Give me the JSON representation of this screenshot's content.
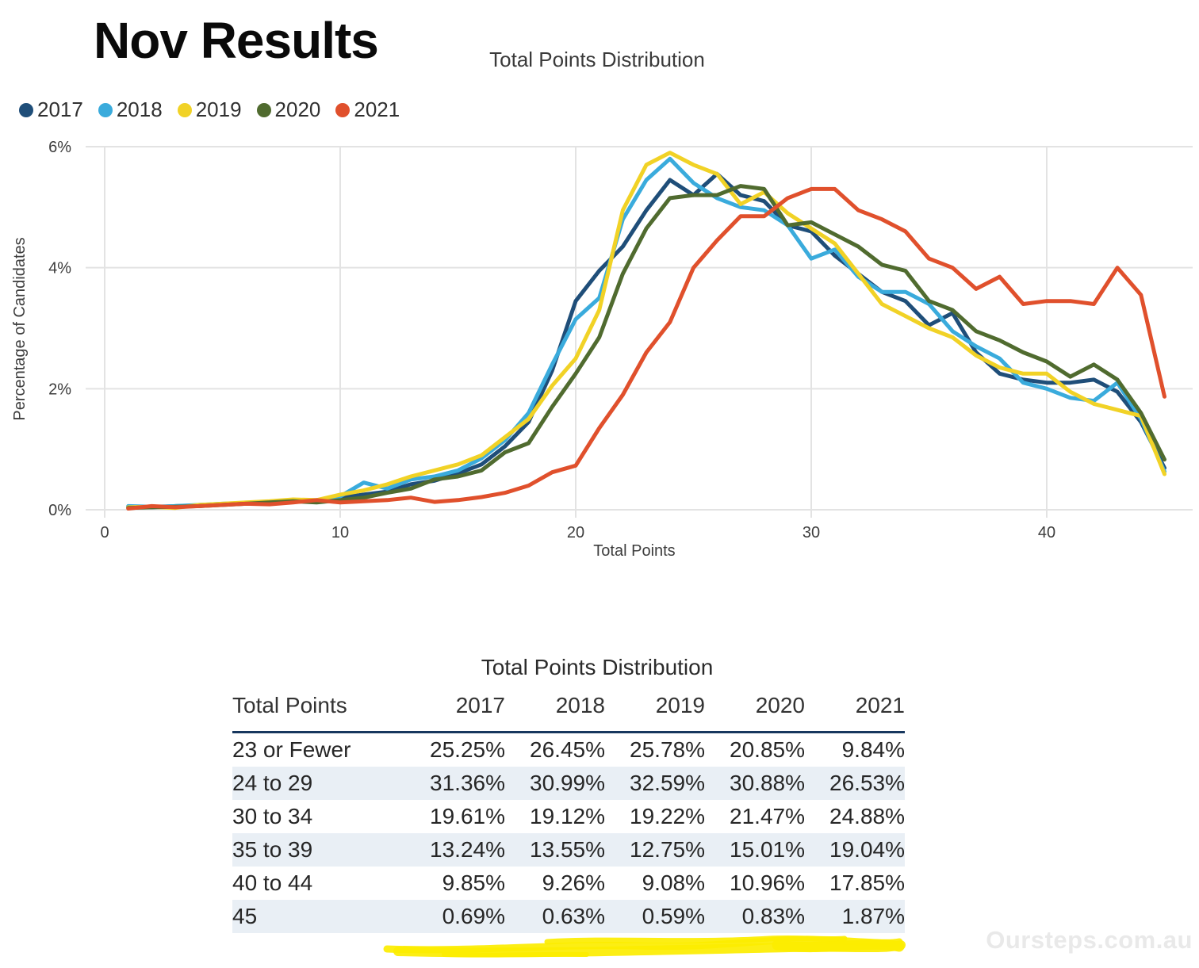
{
  "page_title": "Nov Results",
  "watermark": "Oursteps.com.au",
  "highlight_color": "#fced00",
  "chart_data": {
    "type": "line",
    "title": "Total Points Distribution",
    "xlabel": "Total Points",
    "ylabel": "Percentage of Candidates",
    "xlim": [
      0,
      45.5
    ],
    "ylim": [
      0,
      6
    ],
    "grid": true,
    "legend_position": "top-left",
    "x_ticks": [
      0,
      10,
      20,
      30,
      40
    ],
    "y_ticks": [
      {
        "value": 0,
        "label": "0%"
      },
      {
        "value": 2,
        "label": "2%"
      },
      {
        "value": 4,
        "label": "4%"
      },
      {
        "value": 6,
        "label": "6%"
      }
    ],
    "x": [
      1,
      2,
      3,
      4,
      5,
      6,
      7,
      8,
      9,
      10,
      11,
      12,
      13,
      14,
      15,
      16,
      17,
      18,
      19,
      20,
      21,
      22,
      23,
      24,
      25,
      26,
      27,
      28,
      29,
      30,
      31,
      32,
      33,
      34,
      35,
      36,
      37,
      38,
      39,
      40,
      41,
      42,
      43,
      44,
      45
    ],
    "series": [
      {
        "name": "2017",
        "color": "#1f4e79",
        "values": [
          0.05,
          0.04,
          0.06,
          0.07,
          0.09,
          0.1,
          0.12,
          0.15,
          0.13,
          0.2,
          0.25,
          0.3,
          0.42,
          0.48,
          0.6,
          0.75,
          1.05,
          1.45,
          2.3,
          3.45,
          3.95,
          4.35,
          4.95,
          5.45,
          5.2,
          5.55,
          5.2,
          5.1,
          4.7,
          4.6,
          4.2,
          3.9,
          3.6,
          3.45,
          3.05,
          3.25,
          2.6,
          2.25,
          2.15,
          2.1,
          2.1,
          2.15,
          1.95,
          1.45,
          0.69
        ]
      },
      {
        "name": "2018",
        "color": "#3aabdc",
        "values": [
          0.06,
          0.05,
          0.06,
          0.08,
          0.1,
          0.11,
          0.13,
          0.16,
          0.15,
          0.22,
          0.45,
          0.35,
          0.5,
          0.55,
          0.65,
          0.85,
          1.15,
          1.6,
          2.4,
          3.15,
          3.5,
          4.8,
          5.45,
          5.8,
          5.4,
          5.15,
          5.0,
          4.95,
          4.7,
          4.15,
          4.3,
          3.85,
          3.6,
          3.6,
          3.4,
          2.95,
          2.7,
          2.5,
          2.1,
          2.0,
          1.85,
          1.8,
          2.1,
          1.5,
          0.63
        ]
      },
      {
        "name": "2019",
        "color": "#f1d226",
        "values": [
          0.04,
          0.05,
          0.03,
          0.08,
          0.1,
          0.12,
          0.14,
          0.17,
          0.16,
          0.25,
          0.32,
          0.42,
          0.55,
          0.65,
          0.75,
          0.9,
          1.2,
          1.5,
          2.05,
          2.5,
          3.3,
          4.95,
          5.7,
          5.9,
          5.7,
          5.55,
          5.05,
          5.25,
          4.9,
          4.65,
          4.4,
          3.9,
          3.4,
          3.2,
          3.0,
          2.85,
          2.55,
          2.35,
          2.25,
          2.25,
          1.95,
          1.75,
          1.65,
          1.55,
          0.59
        ]
      },
      {
        "name": "2020",
        "color": "#506b2f",
        "values": [
          0.03,
          0.04,
          0.05,
          0.06,
          0.08,
          0.1,
          0.12,
          0.14,
          0.12,
          0.16,
          0.2,
          0.28,
          0.35,
          0.5,
          0.55,
          0.65,
          0.95,
          1.1,
          1.7,
          2.25,
          2.85,
          3.9,
          4.65,
          5.15,
          5.2,
          5.2,
          5.35,
          5.3,
          4.7,
          4.75,
          4.55,
          4.35,
          4.05,
          3.95,
          3.45,
          3.3,
          2.95,
          2.8,
          2.6,
          2.45,
          2.2,
          2.4,
          2.15,
          1.6,
          0.83
        ]
      },
      {
        "name": "2021",
        "color": "#e0502c",
        "values": [
          0.02,
          0.06,
          0.04,
          0.06,
          0.08,
          0.1,
          0.09,
          0.12,
          0.16,
          0.12,
          0.14,
          0.16,
          0.2,
          0.13,
          0.16,
          0.21,
          0.28,
          0.4,
          0.62,
          0.73,
          1.35,
          1.9,
          2.6,
          3.1,
          4.0,
          4.45,
          4.85,
          4.85,
          5.15,
          5.3,
          5.3,
          4.95,
          4.8,
          4.6,
          4.15,
          4.0,
          3.65,
          3.85,
          3.4,
          3.45,
          3.45,
          3.4,
          4.0,
          3.55,
          1.87
        ]
      }
    ]
  },
  "table": {
    "title": "Total Points Distribution",
    "columns": [
      "Total Points",
      "2017",
      "2018",
      "2019",
      "2020",
      "2021"
    ],
    "rows": [
      {
        "label": "23 or Fewer",
        "values": [
          "25.25%",
          "26.45%",
          "25.78%",
          "20.85%",
          "9.84%"
        ],
        "shaded": false
      },
      {
        "label": "24 to 29",
        "values": [
          "31.36%",
          "30.99%",
          "32.59%",
          "30.88%",
          "26.53%"
        ],
        "shaded": true
      },
      {
        "label": "30 to 34",
        "values": [
          "19.61%",
          "19.12%",
          "19.22%",
          "21.47%",
          "24.88%"
        ],
        "shaded": false
      },
      {
        "label": "35 to 39",
        "values": [
          "13.24%",
          "13.55%",
          "12.75%",
          "15.01%",
          "19.04%"
        ],
        "shaded": true
      },
      {
        "label": "40 to 44",
        "values": [
          "9.85%",
          "9.26%",
          "9.08%",
          "10.96%",
          "17.85%"
        ],
        "shaded": false
      },
      {
        "label": "45",
        "values": [
          "0.69%",
          "0.63%",
          "0.59%",
          "0.83%",
          "1.87%"
        ],
        "shaded": true
      }
    ],
    "header_rule_color": "#17375e",
    "shade_color": "#e9eff5"
  }
}
